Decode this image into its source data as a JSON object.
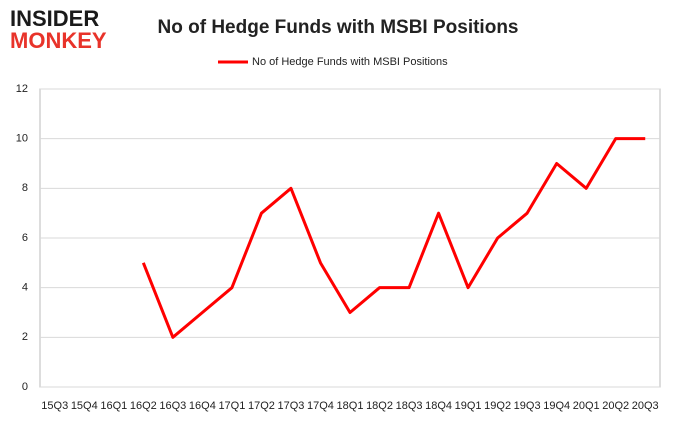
{
  "logo": {
    "line1": "INSIDER",
    "line2": "MONKEY"
  },
  "chart_data": {
    "type": "line",
    "title": "No of Hedge Funds with MSBI Positions",
    "categories": [
      "15Q3",
      "15Q4",
      "16Q1",
      "16Q2",
      "16Q3",
      "16Q4",
      "17Q1",
      "17Q2",
      "17Q3",
      "17Q4",
      "18Q1",
      "18Q2",
      "18Q3",
      "18Q4",
      "19Q1",
      "19Q2",
      "19Q3",
      "19Q4",
      "20Q1",
      "20Q2",
      "20Q3"
    ],
    "series": [
      {
        "name": "No of Hedge Funds with MSBI Positions",
        "color": "#ff0000",
        "values": [
          null,
          null,
          null,
          5,
          2,
          3,
          4,
          7,
          8,
          5,
          3,
          4,
          4,
          7,
          4,
          6,
          7,
          9,
          8,
          10,
          10
        ]
      }
    ],
    "ylim": [
      0,
      12
    ],
    "yticks": [
      0,
      2,
      4,
      6,
      8,
      10,
      12
    ],
    "grid": true,
    "legend": "top"
  }
}
